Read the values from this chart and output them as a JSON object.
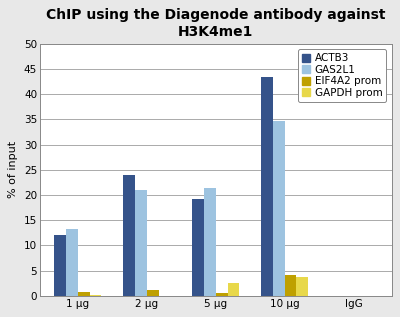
{
  "title": "ChIP using the Diagenode antibody against\nH3K4me1",
  "ylabel": "% of input",
  "categories": [
    "1 μg",
    "2 μg",
    "5 μg",
    "10 μg",
    "IgG"
  ],
  "series": {
    "ACTB3": [
      12.0,
      24.0,
      19.2,
      43.5,
      0.0
    ],
    "GAS2L1": [
      13.3,
      21.1,
      21.5,
      34.7,
      0.0
    ],
    "EIF4A2 prom": [
      0.7,
      1.1,
      0.6,
      4.1,
      0.05
    ],
    "GAPDH prom": [
      0.2,
      0.0,
      2.5,
      3.7,
      0.05
    ]
  },
  "colors": {
    "ACTB3": "#35538a",
    "GAS2L1": "#9dc3e0",
    "EIF4A2 prom": "#bfa000",
    "GAPDH prom": "#e8d84a"
  },
  "ylim": [
    0,
    50
  ],
  "yticks": [
    0,
    5,
    10,
    15,
    20,
    25,
    30,
    35,
    40,
    45,
    50
  ],
  "title_fontsize": 10,
  "axis_fontsize": 8,
  "tick_fontsize": 7.5,
  "legend_fontsize": 7.5,
  "background_color": "#e8e8e8",
  "plot_bg_color": "#ffffff",
  "grid_color": "#888888",
  "border_color": "#888888"
}
